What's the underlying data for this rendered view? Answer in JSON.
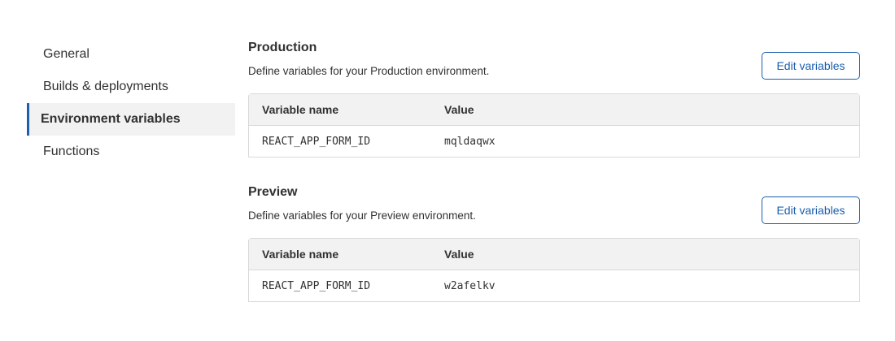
{
  "sidebar": {
    "items": [
      {
        "label": "General",
        "active": false
      },
      {
        "label": "Builds & deployments",
        "active": false
      },
      {
        "label": "Environment variables",
        "active": true
      },
      {
        "label": "Functions",
        "active": false
      }
    ]
  },
  "production": {
    "title": "Production",
    "description": "Define variables for your Production environment.",
    "edit_label": "Edit variables",
    "columns": [
      "Variable name",
      "Value"
    ],
    "rows": [
      {
        "name": "REACT_APP_FORM_ID",
        "value": "mqldaqwx"
      }
    ]
  },
  "preview": {
    "title": "Preview",
    "description": "Define variables for your Preview environment.",
    "edit_label": "Edit variables",
    "columns": [
      "Variable name",
      "Value"
    ],
    "rows": [
      {
        "name": "REACT_APP_FORM_ID",
        "value": "w2afelkv"
      }
    ]
  },
  "colors": {
    "accent": "#1b5fad",
    "header_bg": "#f2f2f2",
    "border": "#d9d9d9"
  }
}
